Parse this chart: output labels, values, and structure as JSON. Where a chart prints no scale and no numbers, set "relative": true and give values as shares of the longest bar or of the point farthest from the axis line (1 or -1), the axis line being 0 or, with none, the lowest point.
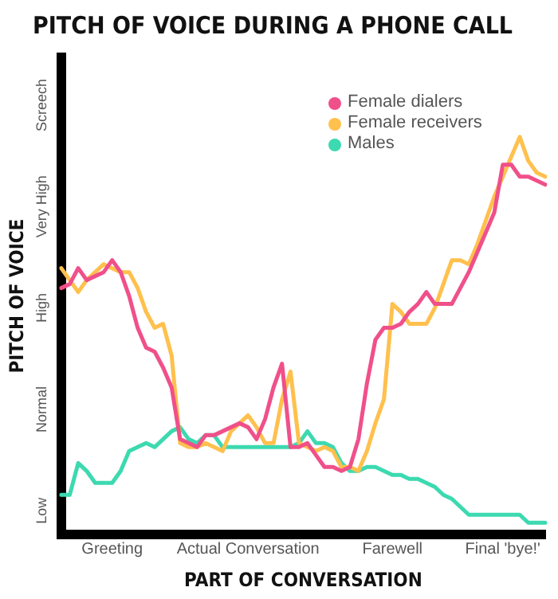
{
  "chart_data": {
    "type": "line",
    "title": "PITCH OF VOICE DURING A PHONE CALL",
    "xlabel": "PART OF CONVERSATION",
    "ylabel": "PITCH OF VOICE",
    "marker": "none",
    "line_style": "solid",
    "legend": "top right",
    "relative": true,
    "annotations": [
      "Low",
      "Normal",
      "High",
      "Very High",
      "Screech"
    ],
    "categories": [
      null,
      null,
      null,
      null,
      null,
      null,
      "Greeting",
      null,
      null,
      null,
      null,
      null,
      null,
      null,
      null,
      null,
      null,
      null,
      null,
      null,
      null,
      null,
      "Actual Conversation",
      null,
      null,
      null,
      null,
      null,
      null,
      null,
      null,
      null,
      null,
      null,
      null,
      null,
      null,
      null,
      null,
      "Farewell",
      null,
      null,
      null,
      null,
      null,
      null,
      null,
      null,
      null,
      null,
      null,
      null,
      "Final 'bye!'",
      null,
      null,
      null,
      null,
      null
    ],
    "series": [
      {
        "name": "Female dialers",
        "color": "#f0508a",
        "values": [
          0.62,
          0.63,
          0.67,
          0.64,
          0.65,
          0.66,
          0.69,
          0.66,
          0.6,
          0.52,
          0.47,
          0.46,
          0.42,
          0.37,
          0.24,
          0.23,
          0.22,
          0.25,
          0.25,
          0.26,
          0.27,
          0.28,
          0.27,
          0.24,
          0.29,
          0.37,
          0.43,
          0.22,
          0.22,
          0.23,
          0.2,
          0.17,
          0.17,
          0.16,
          0.17,
          0.24,
          0.38,
          0.49,
          0.52,
          0.52,
          0.53,
          0.56,
          0.58,
          0.61,
          0.58,
          0.58,
          0.58,
          0.62,
          0.66,
          0.71,
          0.76,
          0.81,
          0.93,
          0.93,
          0.9,
          0.9,
          0.89,
          0.88
        ]
      },
      {
        "name": "Female receivers",
        "color": "#ffc04d",
        "values": [
          0.67,
          0.64,
          0.61,
          0.64,
          0.66,
          0.68,
          0.67,
          0.66,
          0.66,
          0.62,
          0.56,
          0.52,
          0.53,
          0.45,
          0.23,
          0.22,
          0.22,
          0.23,
          0.22,
          0.21,
          0.26,
          0.28,
          0.3,
          0.27,
          0.23,
          0.23,
          0.34,
          0.41,
          0.23,
          0.22,
          0.21,
          0.22,
          0.21,
          0.17,
          0.17,
          0.16,
          0.21,
          0.28,
          0.34,
          0.58,
          0.56,
          0.53,
          0.53,
          0.53,
          0.57,
          0.63,
          0.69,
          0.69,
          0.68,
          0.73,
          0.79,
          0.85,
          0.9,
          0.95,
          1,
          0.94,
          0.91,
          0.9
        ]
      },
      {
        "name": "Males",
        "color": "#3dd9b0",
        "values": [
          0.1,
          0.1,
          0.18,
          0.16,
          0.13,
          0.13,
          0.13,
          0.16,
          0.21,
          0.22,
          0.23,
          0.22,
          0.24,
          0.26,
          0.27,
          0.24,
          0.23,
          0.25,
          0.25,
          0.22,
          0.22,
          0.22,
          0.22,
          0.22,
          0.22,
          0.22,
          0.22,
          0.22,
          0.23,
          0.26,
          0.23,
          0.23,
          0.22,
          0.18,
          0.16,
          0.16,
          0.17,
          0.17,
          0.16,
          0.15,
          0.15,
          0.14,
          0.14,
          0.13,
          0.12,
          0.1,
          0.09,
          0.07,
          0.05,
          0.05,
          0.05,
          0.05,
          0.05,
          0.05,
          0.05,
          0.03,
          0.03,
          0.03
        ]
      }
    ]
  }
}
